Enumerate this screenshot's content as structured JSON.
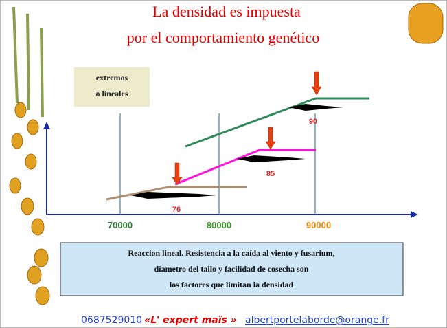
{
  "title": [
    "La densidad es impuesta",
    "por el comportamiento genético"
  ],
  "legend_box": [
    "extremos",
    "o lineales"
  ],
  "axis_labels": [
    "70000",
    "80000",
    "90000"
  ],
  "optimum_labels": [
    "76",
    "85",
    "90"
  ],
  "note": [
    "Reaccion lineal. Resistencia a la caída al viento y fusarium,",
    "diametro del tallo y facilidad de cosecha son",
    "los factores que limitan la densidad"
  ],
  "footer": {
    "phone": "0687529010",
    "brand": "«L' expert maïs »",
    "email": "albertportelaborde@orange.fr"
  }
}
